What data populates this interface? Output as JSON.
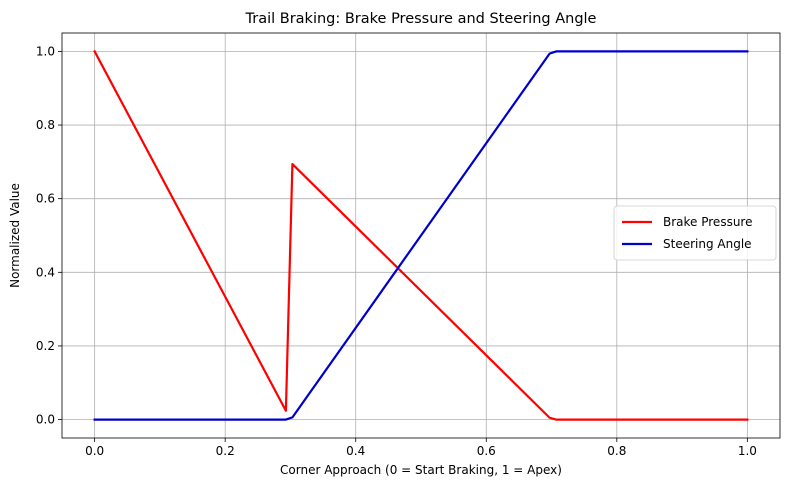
{
  "chart_data": {
    "type": "line",
    "title": "Trail Braking: Brake Pressure and Steering Angle",
    "xlabel": "Corner Approach (0 = Start Braking, 1 = Apex)",
    "ylabel": "Normalized Value",
    "xlim": [
      -0.05,
      1.05
    ],
    "ylim": [
      -0.05,
      1.05
    ],
    "xticks": [
      0.0,
      0.2,
      0.4,
      0.6,
      0.8,
      1.0
    ],
    "xtick_labels": [
      "0.0",
      "0.2",
      "0.4",
      "0.6",
      "0.8",
      "1.0"
    ],
    "yticks": [
      0.0,
      0.2,
      0.4,
      0.6,
      0.8,
      1.0
    ],
    "ytick_labels": [
      "0.0",
      "0.2",
      "0.4",
      "0.6",
      "0.8",
      "1.0"
    ],
    "grid": true,
    "legend_position": "center-right",
    "series": [
      {
        "name": "Brake Pressure",
        "color": "#ff0000",
        "x": [
          0.0,
          0.293,
          0.303,
          0.697,
          0.707,
          1.0
        ],
        "y": [
          1.0,
          0.024,
          0.694,
          0.005,
          0.0,
          0.0
        ]
      },
      {
        "name": "Steering Angle",
        "color": "#0000cc",
        "x": [
          0.0,
          0.293,
          0.303,
          0.697,
          0.707,
          1.0
        ],
        "y": [
          0.0,
          0.0,
          0.006,
          0.994,
          1.0,
          1.0
        ]
      }
    ]
  }
}
